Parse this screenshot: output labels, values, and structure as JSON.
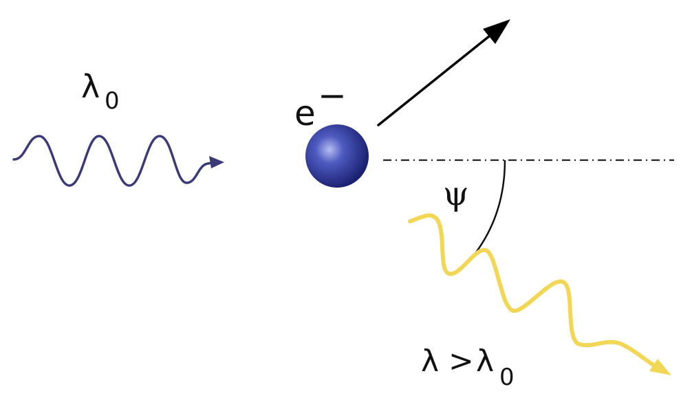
{
  "incident": {
    "symbol": "λ",
    "subscript": "0"
  },
  "electron": {
    "symbol": "e",
    "charge": "−"
  },
  "angle": {
    "symbol": "ψ"
  },
  "scattered": {
    "symbol": "λ",
    "relation": ">",
    "symbol2": "λ",
    "subscript": "0"
  },
  "colors": {
    "incident_wave": "#3a3a78",
    "scattered_wave": "#f2d757",
    "electron_fill": "#2b3590",
    "electron_highlight": "#9aa2de",
    "arrow": "#000000",
    "axis_line": "#222222"
  }
}
